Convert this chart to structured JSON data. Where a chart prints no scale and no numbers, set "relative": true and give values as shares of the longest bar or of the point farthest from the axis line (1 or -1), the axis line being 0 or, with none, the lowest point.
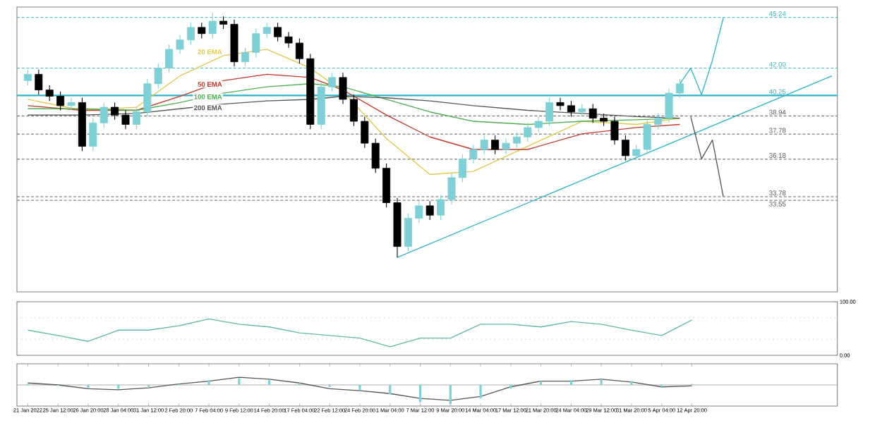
{
  "chart_data": [
    {
      "type": "candlestick",
      "ylim": [
        27.7,
        45.9
      ],
      "tick_labels": false,
      "categories": [
        null,
        null,
        null,
        null,
        null,
        null,
        null,
        null,
        null,
        null,
        null,
        null,
        null,
        null,
        null,
        null,
        null,
        null,
        null,
        null,
        null,
        null,
        null,
        null,
        null,
        null,
        null,
        null,
        null,
        null,
        null,
        null,
        null,
        null,
        null,
        null,
        null,
        null,
        null,
        null,
        null,
        null,
        null,
        null,
        null,
        null,
        null,
        null,
        null,
        null,
        null,
        null,
        null,
        null,
        null,
        null,
        null,
        null,
        null,
        null,
        null,
        null,
        null,
        null,
        null,
        null,
        null,
        null,
        null,
        null,
        null,
        null,
        null,
        null,
        null
      ],
      "ohlc": [
        [
          41.2,
          41.9,
          40.9,
          41.6
        ],
        [
          41.6,
          41.9,
          40.3,
          40.6
        ],
        [
          40.6,
          40.9,
          39.9,
          40.2
        ],
        [
          40.2,
          40.5,
          39.3,
          39.6
        ],
        [
          39.6,
          40.1,
          39.3,
          39.8
        ],
        [
          39.8,
          40.1,
          36.7,
          37.0
        ],
        [
          37.0,
          38.8,
          36.7,
          38.5
        ],
        [
          38.5,
          39.8,
          38.2,
          39.5
        ],
        [
          39.5,
          39.8,
          38.7,
          39.0
        ],
        [
          39.0,
          39.3,
          38.1,
          38.4
        ],
        [
          38.4,
          39.5,
          38.1,
          39.2
        ],
        [
          39.2,
          41.3,
          38.9,
          41.0
        ],
        [
          41.0,
          42.3,
          40.7,
          42.0
        ],
        [
          42.0,
          43.5,
          41.7,
          43.2
        ],
        [
          43.2,
          44.1,
          42.9,
          43.8
        ],
        [
          43.8,
          44.9,
          43.5,
          44.6
        ],
        [
          44.6,
          44.9,
          43.9,
          44.2
        ],
        [
          44.2,
          45.5,
          43.9,
          45.0
        ],
        [
          45.0,
          45.3,
          44.5,
          44.8
        ],
        [
          44.8,
          45.1,
          42.1,
          42.4
        ],
        [
          42.4,
          43.3,
          42.1,
          43.0
        ],
        [
          43.0,
          44.5,
          42.7,
          44.2
        ],
        [
          44.2,
          44.9,
          43.9,
          44.6
        ],
        [
          44.6,
          44.9,
          43.7,
          44.0
        ],
        [
          44.0,
          44.3,
          43.3,
          43.6
        ],
        [
          43.6,
          43.9,
          42.3,
          42.6
        ],
        [
          42.6,
          42.9,
          38.1,
          38.4
        ],
        [
          38.4,
          41.1,
          38.1,
          40.8
        ],
        [
          40.8,
          41.7,
          40.5,
          41.4
        ],
        [
          41.4,
          41.7,
          39.7,
          40.0
        ],
        [
          40.0,
          40.3,
          38.3,
          38.6
        ],
        [
          38.6,
          38.9,
          36.9,
          37.2
        ],
        [
          37.2,
          37.5,
          35.3,
          35.6
        ],
        [
          35.6,
          35.9,
          33.1,
          33.4
        ],
        [
          33.4,
          33.7,
          29.9,
          30.6
        ],
        [
          30.6,
          32.7,
          30.3,
          32.4
        ],
        [
          32.4,
          33.5,
          32.1,
          33.2
        ],
        [
          33.2,
          33.5,
          32.3,
          32.6
        ],
        [
          32.6,
          33.9,
          32.3,
          33.6
        ],
        [
          33.6,
          35.3,
          33.3,
          35.0
        ],
        [
          35.0,
          36.5,
          34.7,
          36.2
        ],
        [
          36.2,
          37.1,
          35.9,
          36.8
        ],
        [
          36.8,
          37.7,
          36.5,
          37.4
        ],
        [
          37.4,
          37.7,
          36.5,
          36.8
        ],
        [
          36.8,
          37.5,
          36.5,
          37.2
        ],
        [
          37.2,
          37.9,
          36.9,
          37.6
        ],
        [
          37.6,
          38.5,
          37.3,
          38.2
        ],
        [
          38.2,
          38.9,
          37.9,
          38.6
        ],
        [
          38.6,
          40.1,
          38.3,
          39.8
        ],
        [
          39.8,
          40.1,
          39.3,
          39.6
        ],
        [
          39.6,
          39.9,
          38.9,
          39.2
        ],
        [
          39.2,
          39.7,
          38.9,
          39.4
        ],
        [
          39.4,
          39.7,
          38.5,
          38.8
        ],
        [
          38.8,
          39.1,
          38.3,
          38.6
        ],
        [
          38.6,
          38.9,
          37.1,
          37.4
        ],
        [
          37.4,
          37.7,
          36.1,
          36.4
        ],
        [
          36.4,
          37.1,
          36.1,
          36.8
        ],
        [
          36.8,
          38.7,
          36.5,
          38.4
        ],
        [
          38.4,
          39.1,
          38.1,
          38.8
        ],
        [
          38.8,
          40.7,
          38.5,
          40.4
        ],
        [
          40.4,
          41.3,
          40.1,
          41.0
        ],
        null,
        null,
        null,
        null,
        null,
        null,
        null,
        null,
        null,
        null,
        null,
        null,
        null,
        null
      ],
      "colors": [
        "#7ecfd6",
        "#000000",
        "#000000",
        "#000000",
        "#7ecfd6",
        "#000000",
        "#7ecfd6",
        "#7ecfd6",
        "#000000",
        "#000000",
        "#7ecfd6",
        "#7ecfd6",
        "#7ecfd6",
        "#7ecfd6",
        "#7ecfd6",
        "#7ecfd6",
        "#000000",
        "#7ecfd6",
        "#000000",
        "#000000",
        "#7ecfd6",
        "#7ecfd6",
        "#7ecfd6",
        "#000000",
        "#000000",
        "#000000",
        "#000000",
        "#7ecfd6",
        "#7ecfd6",
        "#000000",
        "#000000",
        "#000000",
        "#000000",
        "#000000",
        "#000000",
        "#7ecfd6",
        "#7ecfd6",
        "#000000",
        "#7ecfd6",
        "#7ecfd6",
        "#7ecfd6",
        "#7ecfd6",
        "#7ecfd6",
        "#000000",
        "#7ecfd6",
        "#7ecfd6",
        "#7ecfd6",
        "#7ecfd6",
        "#7ecfd6",
        "#000000",
        "#000000",
        "#7ecfd6",
        "#000000",
        "#000000",
        "#000000",
        "#000000",
        "#7ecfd6",
        "#7ecfd6",
        "#7ecfd6",
        "#7ecfd6",
        "#7ecfd6",
        null,
        null,
        null,
        null,
        null,
        null,
        null,
        null,
        null,
        null,
        null,
        null,
        null,
        null
      ],
      "series": [
        {
          "type": "line",
          "name": "20 EMA",
          "color": "#e0c84a",
          "values": [
            40.0,
            null,
            null,
            null,
            null,
            39.3,
            null,
            null,
            null,
            null,
            39.5,
            null,
            null,
            null,
            41.5,
            null,
            null,
            null,
            42.8,
            null,
            null,
            null,
            43.2,
            null,
            null,
            null,
            42.0,
            null,
            null,
            40.5,
            null,
            null,
            null,
            37.5,
            null,
            null,
            null,
            35.2,
            null,
            null,
            null,
            35.4,
            null,
            null,
            null,
            null,
            37.0,
            null,
            null,
            null,
            null,
            38.6,
            null,
            null,
            null,
            null,
            38.4,
            null,
            null,
            null,
            38.8,
            null,
            null,
            null,
            null,
            null,
            null,
            null,
            null,
            null,
            null,
            null,
            null,
            null,
            null
          ]
        },
        {
          "type": "line",
          "name": "50 EMA",
          "color": "#c0392b",
          "values": [
            39.6,
            null,
            null,
            null,
            null,
            39.3,
            null,
            null,
            null,
            null,
            39.3,
            null,
            null,
            null,
            40.2,
            null,
            null,
            null,
            41.2,
            null,
            null,
            null,
            41.6,
            null,
            null,
            null,
            41.4,
            null,
            null,
            40.6,
            null,
            null,
            null,
            39.0,
            null,
            null,
            null,
            37.6,
            null,
            null,
            null,
            36.8,
            null,
            null,
            null,
            null,
            36.8,
            null,
            null,
            null,
            null,
            37.8,
            null,
            null,
            null,
            null,
            38.2,
            null,
            null,
            null,
            38.4,
            null,
            null,
            null,
            null,
            null,
            null,
            null,
            null,
            null,
            null,
            null,
            null,
            null,
            null
          ]
        },
        {
          "type": "line",
          "name": "100 EMA",
          "color": "#4caf50",
          "values": [
            39.4,
            null,
            null,
            null,
            null,
            39.4,
            null,
            null,
            null,
            null,
            39.3,
            null,
            null,
            null,
            39.8,
            null,
            null,
            null,
            40.4,
            null,
            null,
            null,
            40.8,
            null,
            null,
            null,
            41.0,
            null,
            null,
            40.8,
            null,
            null,
            null,
            40.0,
            null,
            null,
            null,
            39.2,
            null,
            null,
            null,
            38.6,
            null,
            null,
            null,
            null,
            38.4,
            null,
            null,
            null,
            null,
            38.6,
            null,
            null,
            null,
            null,
            38.7,
            null,
            null,
            null,
            38.8,
            null,
            null,
            null,
            null,
            null,
            null,
            null,
            null,
            null,
            null,
            null,
            null,
            null,
            null
          ]
        },
        {
          "type": "line",
          "name": "200 EMA",
          "color": "#555555",
          "values": [
            39.0,
            null,
            null,
            null,
            null,
            39.0,
            null,
            null,
            null,
            null,
            39.1,
            null,
            null,
            null,
            39.4,
            null,
            null,
            null,
            39.7,
            null,
            null,
            null,
            39.9,
            null,
            null,
            null,
            40.0,
            null,
            null,
            40.2,
            null,
            null,
            null,
            40.1,
            null,
            null,
            null,
            39.9,
            null,
            null,
            null,
            39.6,
            null,
            null,
            null,
            null,
            39.3,
            null,
            null,
            null,
            null,
            39.1,
            null,
            null,
            null,
            null,
            38.9,
            null,
            null,
            null,
            38.8,
            null,
            null,
            null,
            null,
            null,
            null,
            null,
            null,
            null,
            null,
            null,
            null,
            null,
            null
          ]
        },
        {
          "type": "line",
          "color": "#2eb4c4",
          "values": [
            null,
            null,
            null,
            null,
            null,
            null,
            null,
            null,
            null,
            null,
            null,
            null,
            null,
            null,
            null,
            null,
            null,
            null,
            null,
            null,
            null,
            null,
            null,
            null,
            null,
            null,
            null,
            null,
            null,
            null,
            null,
            null,
            null,
            null,
            29.9,
            null,
            null,
            null,
            null,
            null,
            null,
            null,
            null,
            null,
            null,
            null,
            null,
            null,
            null,
            null,
            null,
            null,
            null,
            null,
            null,
            null,
            null,
            null,
            null,
            null,
            null,
            null,
            null,
            null,
            null,
            null,
            null,
            null,
            null,
            null,
            null,
            null,
            null,
            null,
            41.5
          ]
        },
        {
          "type": "line",
          "color": "#2eb4c4",
          "values": [
            null,
            null,
            null,
            null,
            null,
            null,
            null,
            null,
            null,
            null,
            null,
            null,
            null,
            null,
            null,
            null,
            null,
            null,
            null,
            null,
            null,
            null,
            null,
            null,
            null,
            null,
            null,
            null,
            null,
            null,
            null,
            null,
            null,
            null,
            null,
            null,
            null,
            null,
            null,
            null,
            null,
            null,
            null,
            null,
            null,
            null,
            null,
            null,
            null,
            null,
            null,
            null,
            null,
            null,
            null,
            null,
            null,
            null,
            null,
            null,
            41.0,
            42.0,
            40.3,
            42.5,
            45.2,
            null,
            null,
            null,
            null,
            null,
            null,
            null,
            null,
            null,
            null
          ]
        },
        {
          "type": "line",
          "color": "#555555",
          "values": [
            null,
            null,
            null,
            null,
            null,
            null,
            null,
            null,
            null,
            null,
            null,
            null,
            null,
            null,
            null,
            null,
            null,
            null,
            null,
            null,
            null,
            null,
            null,
            null,
            null,
            null,
            null,
            null,
            null,
            null,
            null,
            null,
            null,
            null,
            null,
            null,
            null,
            null,
            null,
            null,
            null,
            null,
            null,
            null,
            null,
            null,
            null,
            null,
            null,
            null,
            null,
            null,
            null,
            null,
            null,
            null,
            null,
            null,
            null,
            null,
            null,
            38.9,
            36.2,
            37.4,
            33.8,
            null,
            null,
            null,
            null,
            null,
            null,
            null,
            null,
            null,
            null
          ]
        }
      ],
      "ref_lines": [
        {
          "axis": "y",
          "value": 45.24,
          "label": "45.24",
          "color": "#2eb4c4",
          "line_style": "dashed"
        },
        {
          "axis": "y",
          "value": 42.0,
          "label": "42.00",
          "color": "#2eb4c4",
          "line_style": "dashed"
        },
        {
          "axis": "y",
          "value": 40.25,
          "label": "40.25",
          "color": "#2eb4c4",
          "line_style": "solid"
        },
        {
          "axis": "y",
          "value": 38.94,
          "label": "38.94",
          "color": "#555555",
          "line_style": "dashed"
        },
        {
          "axis": "y",
          "value": 37.78,
          "label": "37.78",
          "color": "#555555",
          "line_style": "dashed"
        },
        {
          "axis": "y",
          "value": 36.18,
          "label": "36.18",
          "color": "#555555",
          "line_style": "dashed"
        },
        {
          "axis": "y",
          "value": 33.78,
          "label": "33.78",
          "color": "#555555",
          "line_style": "dashed"
        },
        {
          "axis": "y",
          "value": 33.55,
          "label": "33.55",
          "color": "#555555",
          "line_style": "dashed"
        }
      ]
    },
    {
      "type": "line",
      "ylim": [
        0,
        100
      ],
      "tick_labels": "y",
      "yticks": [
        {
          "value": 0,
          "label": "0.00"
        },
        {
          "value": 100,
          "label": "100.00"
        }
      ],
      "categories": [
        null,
        null,
        null,
        null,
        null,
        null,
        null,
        null,
        null,
        null,
        null,
        null,
        null,
        null,
        null,
        null,
        null,
        null,
        null,
        null,
        null,
        null,
        null
      ],
      "series": [
        {
          "color": "#5fb8a8",
          "values": [
            47,
            37,
            26,
            47,
            47,
            55,
            68,
            58,
            53,
            42,
            37,
            32,
            16,
            32,
            32,
            58,
            58,
            53,
            63,
            58,
            47,
            37,
            66
          ]
        }
      ],
      "ref_lines": [
        {
          "axis": "y",
          "value": 70,
          "color": "#aaaaaa",
          "line_style": "dotted"
        },
        {
          "axis": "y",
          "value": 30,
          "color": "#aaaaaa",
          "line_style": "dotted"
        }
      ]
    },
    {
      "type": "bar",
      "relative": true,
      "tick_labels": "x",
      "categories": [
        "21 Jan 2022",
        "25 Jan 12:00",
        "26 Jan 20:00",
        "28 Jan 04:00",
        "31 Jan 12:00",
        "2 Feb 20:00",
        "7 Feb 04:00",
        "9 Feb 12:00",
        "14 Feb 20:00",
        "17 Feb 04:00",
        "22 Feb 12:00",
        "24 Feb 20:00",
        "1 Mar 04:00",
        "7 Mar 12:00",
        "9 Mar 20:00",
        "14 Mar 04:00",
        "17 Mar 12:00",
        "21 Mar 20:00",
        "24 Mar 04:00",
        "29 Mar 12:00",
        "31 Mar 20:00",
        "5 Apr 04:00",
        "12 Apr 20:00"
      ],
      "series": [
        {
          "type": "bar",
          "color": "#7ecfd6",
          "values": [
            0.05,
            -0.05,
            -0.15,
            -0.2,
            -0.1,
            0.05,
            0.25,
            0.35,
            0.25,
            0.1,
            -0.1,
            -0.3,
            -0.5,
            -0.9,
            -1.0,
            -0.7,
            -0.2,
            0.2,
            0.25,
            0.3,
            0.2,
            -0.1,
            0.05
          ]
        },
        {
          "type": "line",
          "color": "#555555",
          "values": [
            0.1,
            0,
            -0.2,
            -0.25,
            -0.15,
            0.05,
            0.2,
            0.4,
            0.3,
            0.1,
            -0.2,
            -0.3,
            -0.45,
            -0.7,
            -0.8,
            -0.6,
            -0.1,
            0.2,
            0.2,
            0.3,
            0.15,
            -0.1,
            -0.05
          ]
        }
      ]
    }
  ]
}
